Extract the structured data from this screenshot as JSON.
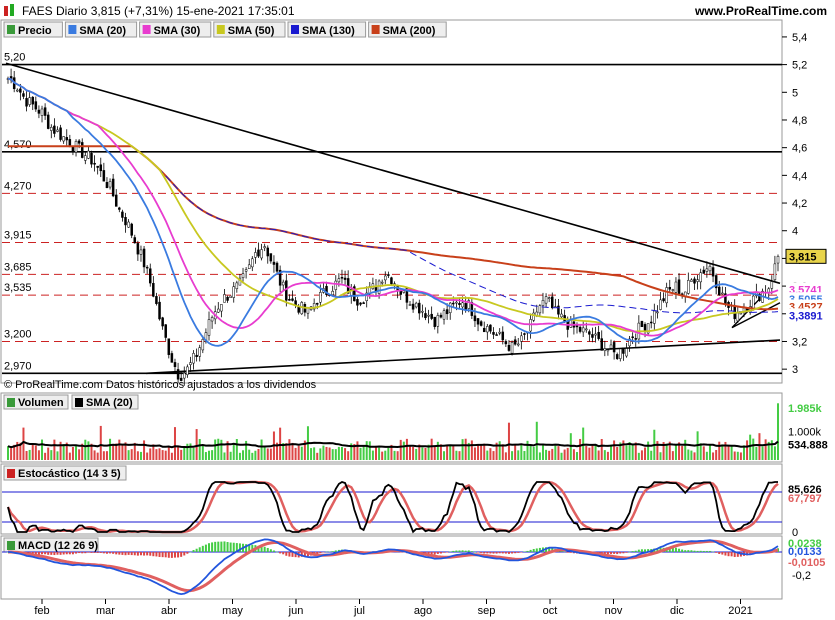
{
  "header": {
    "title": "FAES Diario 3,815 (+7,31%) 15-ene-2021 17:35:01",
    "site": "www.ProRealTime.com"
  },
  "footer_note": "© ProRealTime.com Datos históricos ajustados a los dividendos",
  "colors": {
    "price_up": "#22aa22",
    "price_down": "#cc2222",
    "sma20": "#3a7be0",
    "sma30": "#e83ccf",
    "sma50": "#c8c820",
    "sma130": "#1a1ad0",
    "sma200": "#c8401a",
    "volume_up": "#44cc44",
    "volume_down": "#dd4444",
    "stoch_k": "#000000",
    "stoch_d": "#e06060",
    "macd_line": "#2255dd",
    "macd_signal": "#e06060"
  },
  "chart_data": [
    {
      "type": "candlestick",
      "panel": "price",
      "legend": [
        "Precio",
        "SMA (20)",
        "SMA (30)",
        "SMA (50)",
        "SMA (130)",
        "SMA (200)"
      ],
      "x_labels": [
        "feb",
        "mar",
        "abr",
        "may",
        "jun",
        "jul",
        "ago",
        "sep",
        "oct",
        "nov",
        "dic",
        "2021"
      ],
      "y_ticks": [
        "5,4",
        "5,2",
        "5",
        "4,8",
        "4,6",
        "4,4",
        "4,2",
        "4",
        "3,8",
        "3,6",
        "3,4",
        "3,2",
        "3"
      ],
      "ylim": [
        2.9,
        5.45
      ],
      "horizontal_levels": [
        {
          "value": 5.2,
          "label": "5,20",
          "style": "solid"
        },
        {
          "value": 4.57,
          "label": "4,570",
          "style": "solid"
        },
        {
          "value": 4.27,
          "label": "4,270",
          "style": "dashed"
        },
        {
          "value": 3.915,
          "label": "3,915",
          "style": "dashed"
        },
        {
          "value": 3.685,
          "label": "3,685",
          "style": "dashed"
        },
        {
          "value": 3.535,
          "label": "3,535",
          "style": "dashed"
        },
        {
          "value": 3.2,
          "label": "3,200",
          "style": "dashed"
        },
        {
          "value": 2.97,
          "label": "2,970",
          "style": "solid"
        }
      ],
      "price_path": [
        5.1,
        5.05,
        4.95,
        4.9,
        4.85,
        4.75,
        4.7,
        4.65,
        4.6,
        4.55,
        4.5,
        4.4,
        4.3,
        4.15,
        4.05,
        3.9,
        3.75,
        3.55,
        3.3,
        3.1,
        2.95,
        3.0,
        3.1,
        3.25,
        3.4,
        3.5,
        3.55,
        3.6,
        3.7,
        3.85,
        3.9,
        3.75,
        3.6,
        3.5,
        3.45,
        3.4,
        3.5,
        3.55,
        3.6,
        3.65,
        3.55,
        3.5,
        3.55,
        3.6,
        3.7,
        3.65,
        3.55,
        3.5,
        3.45,
        3.4,
        3.35,
        3.4,
        3.45,
        3.5,
        3.45,
        3.35,
        3.3,
        3.25,
        3.2,
        3.15,
        3.2,
        3.3,
        3.45,
        3.5,
        3.4,
        3.35,
        3.3,
        3.28,
        3.25,
        3.2,
        3.15,
        3.1,
        3.15,
        3.25,
        3.3,
        3.35,
        3.45,
        3.55,
        3.6,
        3.55,
        3.65,
        3.7,
        3.75,
        3.6,
        3.45,
        3.4,
        3.45,
        3.5,
        3.55,
        3.6,
        3.815
      ],
      "last_values": [
        {
          "label": "3,815",
          "value": 3.815,
          "color": "#e8c800"
        },
        {
          "label": "3,5741",
          "value": 3.5741,
          "color": "#e83ccf"
        },
        {
          "label": "3,5055",
          "value": 3.5055,
          "color": "#3a7be0"
        },
        {
          "label": "3,4527",
          "value": 3.4527,
          "color": "#c8401a"
        },
        {
          "label": "3,3891",
          "value": 3.3891,
          "color": "#1a1ad0"
        }
      ]
    },
    {
      "type": "bar",
      "panel": "volume",
      "legend": [
        "Volumen",
        "SMA (20)"
      ],
      "y_ticks": [
        "1.000k"
      ],
      "last_values": [
        {
          "label": "1.985k",
          "value": 1985,
          "color": "#44cc44"
        },
        {
          "label": "534.888",
          "value": 534.888,
          "color": "#000000"
        }
      ]
    },
    {
      "type": "line",
      "panel": "stochastic",
      "legend": [
        "Estocástico (14 3 5)"
      ],
      "y_ticks": [
        "0"
      ],
      "ylim": [
        0,
        100
      ],
      "last_values": [
        {
          "label": "85,626",
          "value": 85.626,
          "color": "#000000"
        },
        {
          "label": "67,797",
          "value": 67.797,
          "color": "#e06060"
        }
      ]
    },
    {
      "type": "line",
      "panel": "macd",
      "legend": [
        "MACD (12 26 9)"
      ],
      "y_ticks": [
        "-0,2"
      ],
      "last_values": [
        {
          "label": "0,0238",
          "value": 0.0238,
          "color": "#44cc44"
        },
        {
          "label": "0,0133",
          "value": 0.0133,
          "color": "#2255dd"
        },
        {
          "label": "-0,0105",
          "value": -0.0105,
          "color": "#e06060"
        }
      ]
    }
  ]
}
